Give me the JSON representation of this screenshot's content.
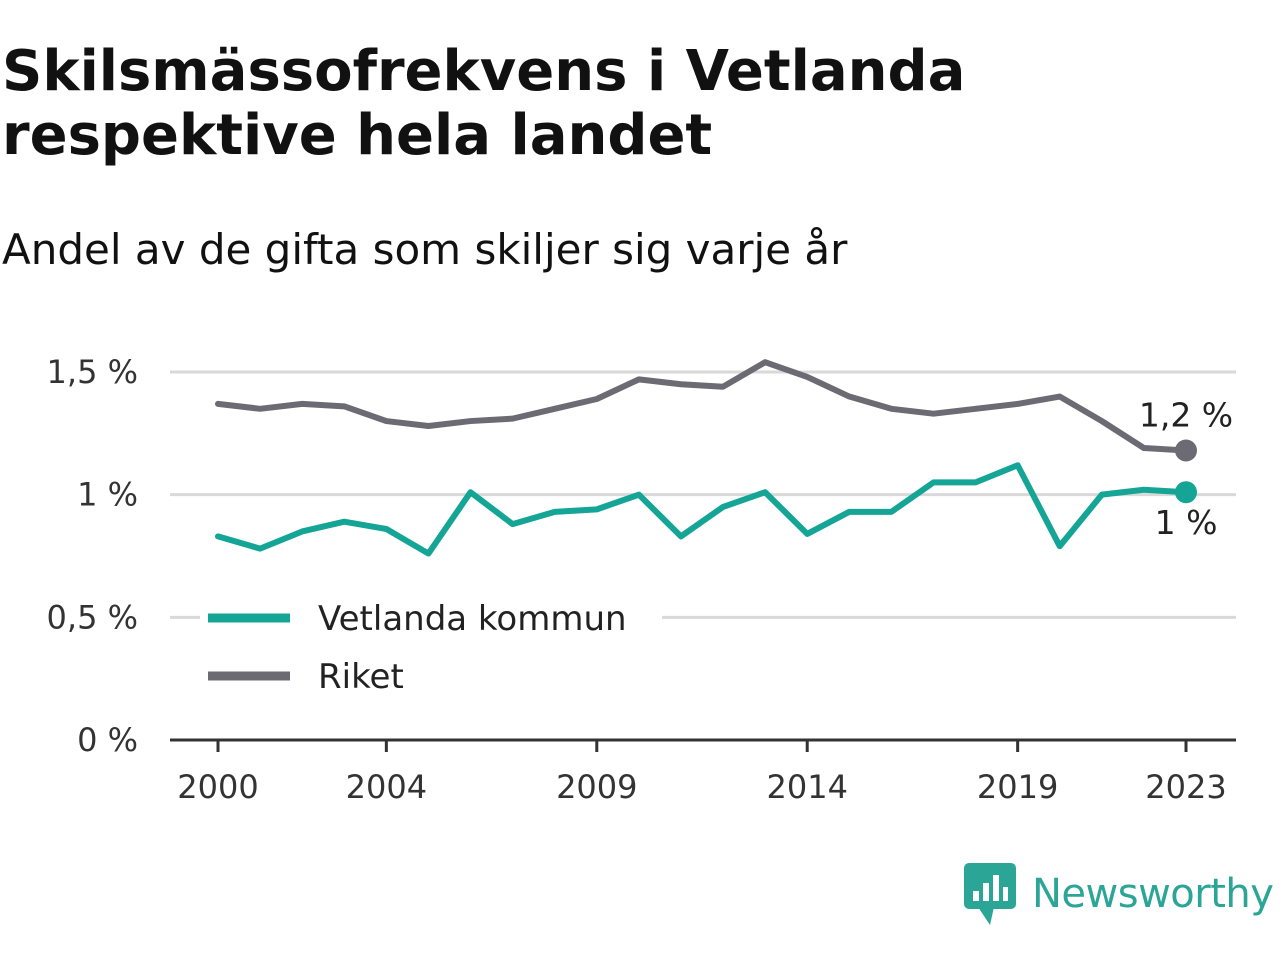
{
  "title": "Skilsmässofrekvens i Vetlanda respektive hela landet",
  "subtitle": "Andel av de gifta som skiljer sig varje år",
  "brand": {
    "name": "Newsworthy",
    "icon": "newsworthy-logo-icon",
    "color": "#2ba596"
  },
  "chart_data": {
    "type": "line",
    "x": [
      2000,
      2001,
      2002,
      2003,
      2004,
      2005,
      2006,
      2007,
      2008,
      2009,
      2010,
      2011,
      2012,
      2013,
      2014,
      2015,
      2016,
      2017,
      2018,
      2019,
      2020,
      2021,
      2022,
      2023
    ],
    "series": [
      {
        "name": "Vetlanda kommun",
        "color": "#14a596",
        "values": [
          0.83,
          0.78,
          0.85,
          0.89,
          0.86,
          0.76,
          1.01,
          0.88,
          0.93,
          0.94,
          1.0,
          0.83,
          0.95,
          1.01,
          0.84,
          0.93,
          0.93,
          1.05,
          1.05,
          1.12,
          0.79,
          1.0,
          1.02,
          1.01
        ],
        "end_label": "1 %"
      },
      {
        "name": "Riket",
        "color": "#6c6a72",
        "values": [
          1.37,
          1.35,
          1.37,
          1.36,
          1.3,
          1.28,
          1.3,
          1.31,
          1.35,
          1.39,
          1.47,
          1.45,
          1.44,
          1.54,
          1.48,
          1.4,
          1.35,
          1.33,
          1.35,
          1.37,
          1.4,
          1.3,
          1.19,
          1.18
        ],
        "end_label": "1,2 %"
      }
    ],
    "xticks": [
      2000,
      2004,
      2009,
      2014,
      2019,
      2023
    ],
    "xtick_labels": [
      "2000",
      "2004",
      "2009",
      "2014",
      "2019",
      "2023"
    ],
    "yticks": [
      0,
      0.5,
      1,
      1.5
    ],
    "ytick_labels": [
      "0 %",
      "0,5 %",
      "1 %",
      "1,5 %"
    ],
    "xlim": [
      2000,
      2023
    ],
    "ylim": [
      0,
      1.5
    ],
    "grid": true,
    "legend_position": "lower-left",
    "xlabel": "",
    "ylabel": ""
  }
}
